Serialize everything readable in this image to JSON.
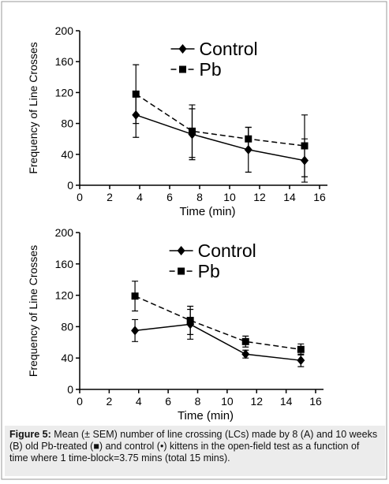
{
  "chart_data": [
    {
      "type": "line",
      "xlabel": "Time (min)",
      "ylabel": "Frequency of Line Crosses",
      "x": [
        3.75,
        7.5,
        11.25,
        15
      ],
      "xlim": [
        0,
        16
      ],
      "xticks": [
        0,
        2,
        4,
        6,
        8,
        10,
        12,
        14,
        16
      ],
      "ylim": [
        0,
        200
      ],
      "yticks": [
        0,
        40,
        80,
        120,
        160,
        200
      ],
      "legend": "top",
      "series": [
        {
          "name": "Control",
          "color": "#000000",
          "marker": "diamond",
          "dash": "solid",
          "values": [
            91,
            66,
            46,
            32
          ],
          "errors": [
            29,
            33,
            29,
            28
          ]
        },
        {
          "name": "Pb",
          "color": "#000000",
          "marker": "square",
          "dash": "dashed",
          "values": [
            118,
            70,
            60,
            51
          ],
          "errors": [
            38,
            34,
            15,
            40
          ]
        }
      ]
    },
    {
      "type": "line",
      "xlabel": "Time (min)",
      "ylabel": "Frequency of Line Crosses",
      "x": [
        3.75,
        7.5,
        11.25,
        15
      ],
      "xlim": [
        0,
        16
      ],
      "xticks": [
        0,
        2,
        4,
        6,
        8,
        10,
        12,
        14,
        16
      ],
      "ylim": [
        0,
        200
      ],
      "yticks": [
        0,
        40,
        80,
        120,
        160,
        200
      ],
      "legend": "top",
      "series": [
        {
          "name": "Control",
          "color": "#000000",
          "marker": "diamond",
          "dash": "solid",
          "values": [
            75,
            83,
            45,
            37
          ],
          "errors": [
            14,
            19,
            5,
            8
          ]
        },
        {
          "name": "Pb",
          "color": "#000000",
          "marker": "square",
          "dash": "dashed",
          "values": [
            119,
            88,
            61,
            51
          ],
          "errors": [
            19,
            18,
            7,
            7
          ]
        }
      ]
    }
  ],
  "caption": {
    "label": "Figure 5:",
    "text": "Mean (± SEM) number of line crossing (LCs) made by 8 (A) and 10 weeks (B) old Pb-treated (■) and control (•) kittens in the open-field test as a function of time where 1 time-block=3.75 mins (total 15 mins)."
  }
}
